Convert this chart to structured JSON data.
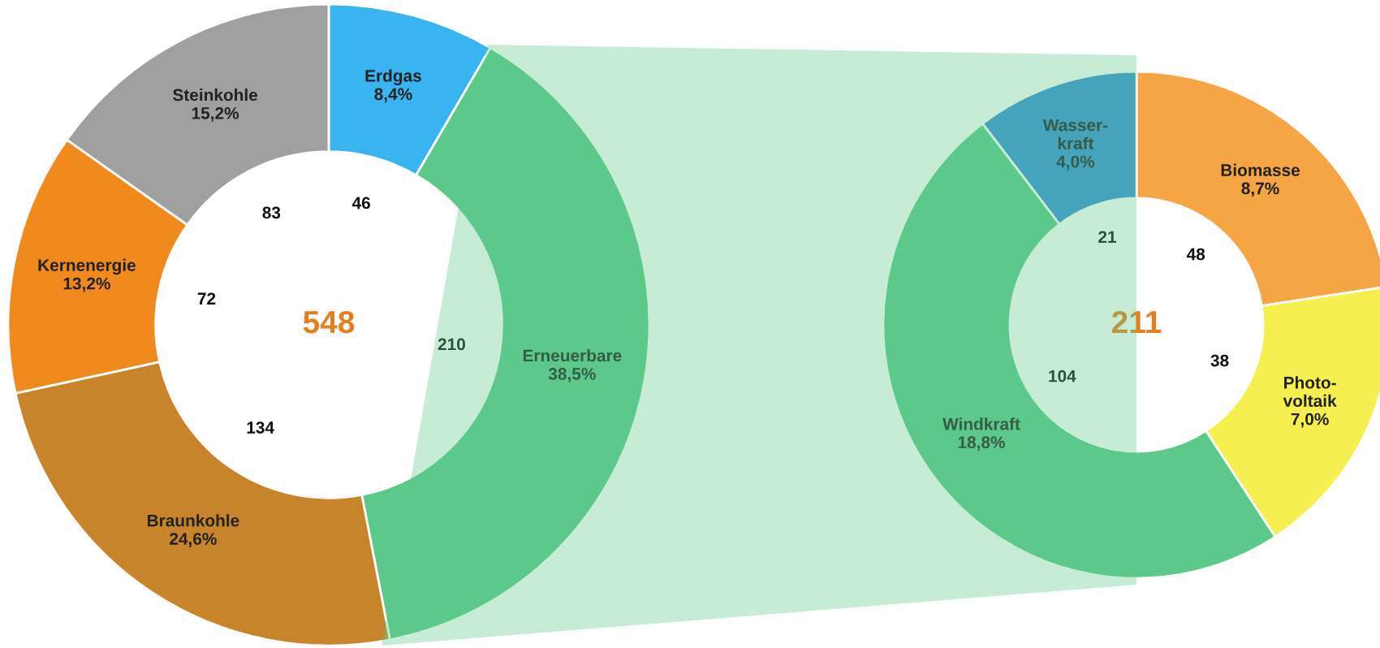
{
  "chart_data": [
    {
      "type": "donut",
      "categories": [
        "Erdgas",
        "Erneuerbare",
        "Braunkohle",
        "Kernenergie",
        "Steinkohle"
      ],
      "values": [
        8.4,
        38.5,
        24.6,
        13.2,
        15.2
      ],
      "colors": [
        "#3ab4f0",
        "#5cc98a",
        "#c8842a",
        "#f08a1e",
        "#a0a0a0"
      ],
      "value_labels": [
        "8,4%",
        "38,5%",
        "24,6%",
        "13,2%",
        "15,2%"
      ],
      "annotations": [
        "548",
        "46",
        "210",
        "134",
        "72",
        "83"
      ],
      "legend": false
    },
    {
      "type": "donut",
      "categories": [
        "Biomasse",
        "Photo-\nvoltaik",
        "Windkraft",
        "Wasser-\nkraft"
      ],
      "values": [
        8.7,
        7.0,
        18.8,
        4.0
      ],
      "colors": [
        "#f5a544",
        "#f5f050",
        "#5cc98a",
        "#3a8fd8"
      ],
      "value_labels": [
        "8,7%",
        "7,0%",
        "18,8%",
        "4,0%"
      ],
      "annotations": [
        "211",
        "48",
        "38",
        "104",
        "21"
      ],
      "legend": false
    }
  ]
}
